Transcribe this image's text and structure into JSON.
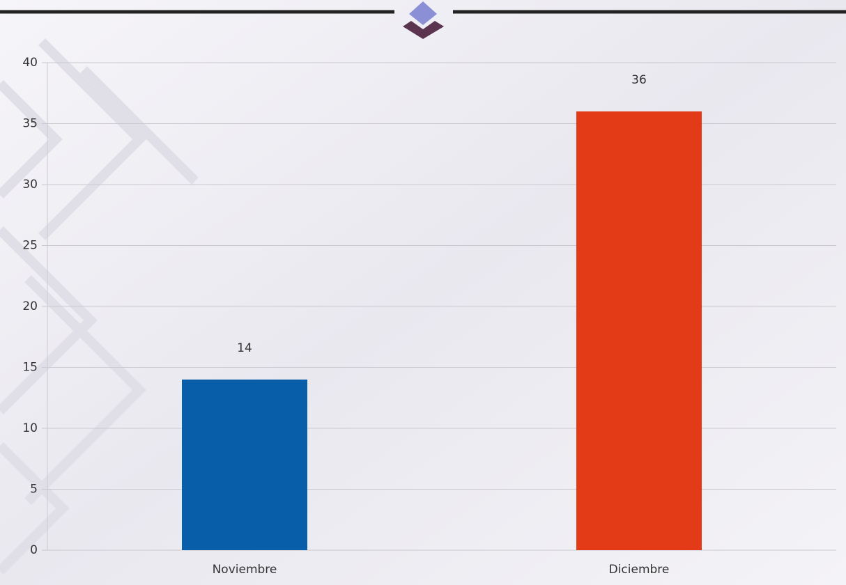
{
  "chart_data": {
    "type": "bar",
    "categories": [
      "Noviembre",
      "Diciembre"
    ],
    "values": [
      14,
      36
    ],
    "colors": [
      "#085ea8",
      "#e33a17"
    ],
    "ylim": [
      0,
      40
    ],
    "yticks": [
      0,
      5,
      10,
      15,
      20,
      25,
      30,
      35,
      40
    ],
    "grid": true
  }
}
